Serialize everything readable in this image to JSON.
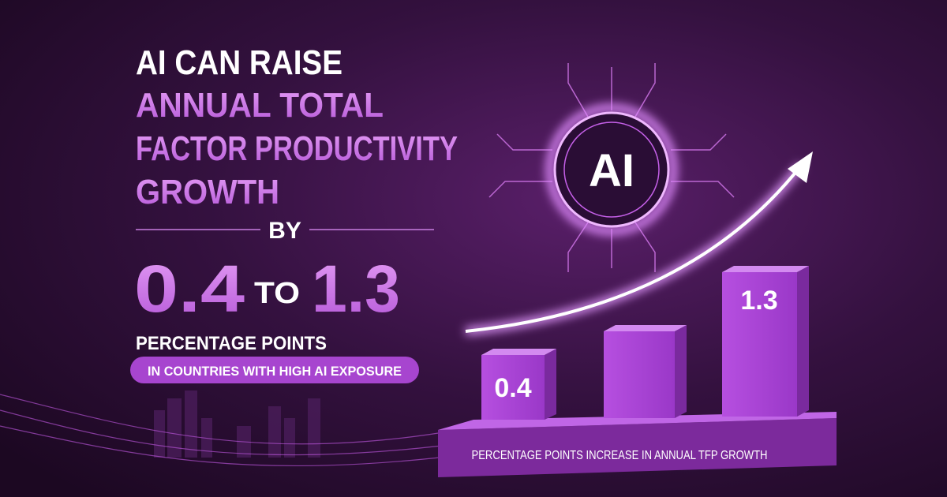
{
  "headline": {
    "line1": "AI CAN RAISE",
    "line2": "ANNUAL TOTAL",
    "line3": "FACTOR PRODUCTIVITY",
    "line4": "GROWTH",
    "connector": "BY"
  },
  "range": {
    "low": "0.4",
    "to": "TO",
    "high": "1.3",
    "unit": "PERCENTAGE POINTS",
    "qualifier": "IN COUNTRIES WITH HIGH AI EXPOSURE"
  },
  "icon_label": "AI",
  "bars": {
    "labels": [
      "0.4",
      "1.3"
    ],
    "caption": "PERCENTAGE POINTS INCREASE IN ANNUAL TFP GROWTH"
  }
}
